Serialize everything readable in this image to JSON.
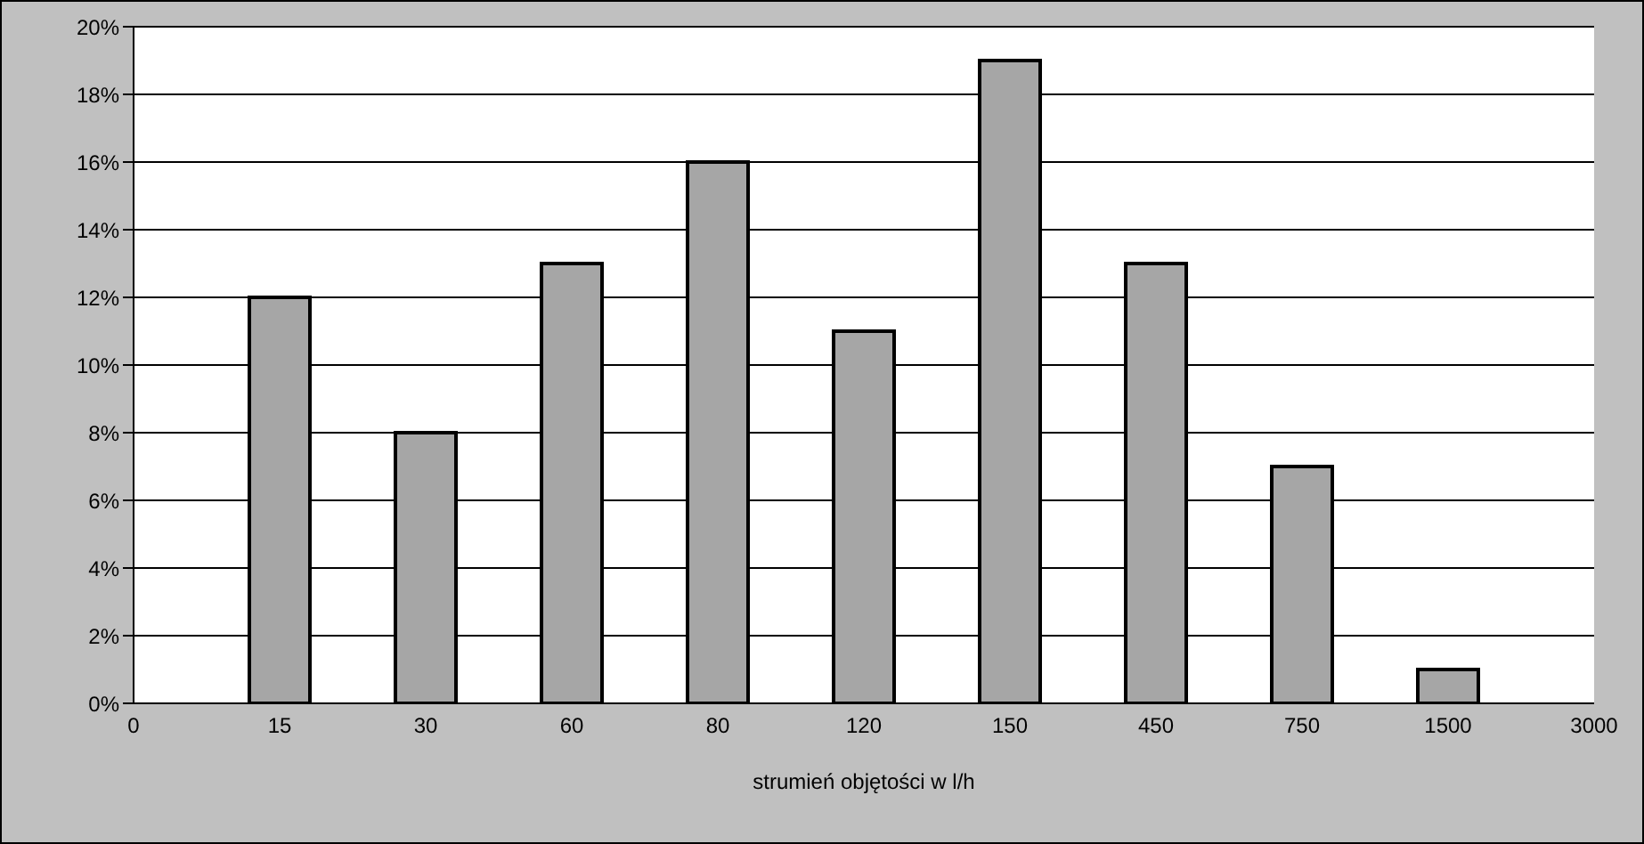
{
  "chart_data": {
    "type": "bar",
    "xlabel": "strumień objętości w l/h",
    "categories": [
      "0",
      "15",
      "30",
      "60",
      "80",
      "120",
      "150",
      "450",
      "750",
      "1500",
      "3000"
    ],
    "values": [
      null,
      12,
      8,
      13,
      16,
      11,
      19,
      13,
      7,
      1,
      null
    ],
    "color": "#a6a6a6",
    "ylim": [
      0,
      20
    ],
    "yticks": [
      {
        "value": 0,
        "label": "0%"
      },
      {
        "value": 2,
        "label": "2%"
      },
      {
        "value": 4,
        "label": "4%"
      },
      {
        "value": 6,
        "label": "6%"
      },
      {
        "value": 8,
        "label": "8%"
      },
      {
        "value": 10,
        "label": "10%"
      },
      {
        "value": 12,
        "label": "12%"
      },
      {
        "value": 14,
        "label": "14%"
      },
      {
        "value": 16,
        "label": "16%"
      },
      {
        "value": 18,
        "label": "18%"
      },
      {
        "value": 20,
        "label": "20%"
      }
    ],
    "grid": "y"
  }
}
